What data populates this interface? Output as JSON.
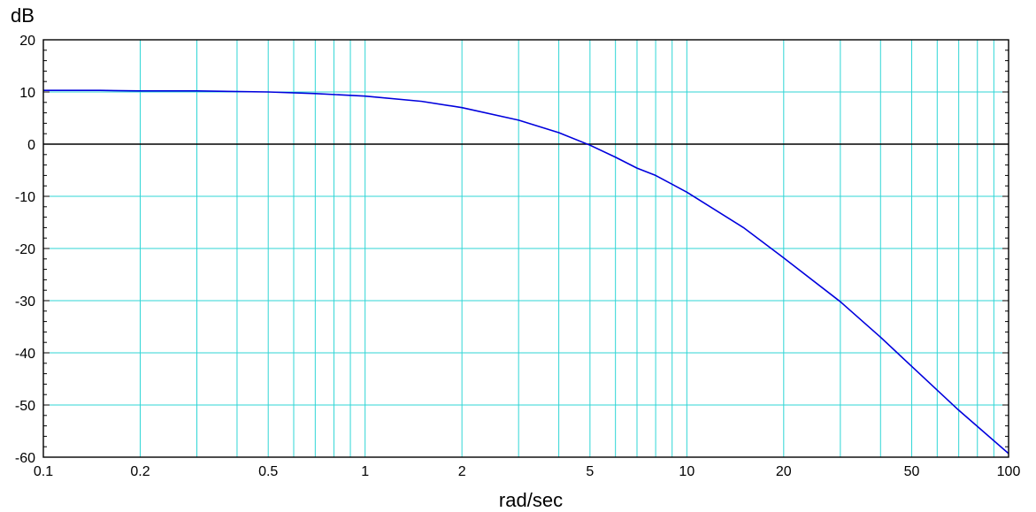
{
  "chart_data": {
    "type": "line",
    "title": "",
    "xlabel": "rad/sec",
    "ylabel": "dB",
    "xscale": "log",
    "xlim": [
      0.1,
      100
    ],
    "ylim": [
      -60,
      20
    ],
    "x_ticks": [
      0.1,
      0.2,
      0.5,
      1,
      2,
      5,
      10,
      20,
      50,
      100
    ],
    "x_tick_labels": [
      "0.1",
      "0.2",
      "0.5",
      "1",
      "2",
      "5",
      "10",
      "20",
      "50",
      "100"
    ],
    "y_ticks": [
      20,
      10,
      0,
      -10,
      -20,
      -30,
      -40,
      -50,
      -60
    ],
    "y_tick_labels": [
      "20",
      "10",
      "0",
      "-10",
      "-20",
      "-30",
      "-40",
      "-50",
      "-60"
    ],
    "grid": true,
    "zero_line": true,
    "series": [
      {
        "x": [
          0.1,
          0.15,
          0.2,
          0.3,
          0.5,
          0.7,
          1,
          1.5,
          2,
          3,
          4,
          5,
          6,
          7,
          8,
          10,
          15,
          20,
          30,
          40,
          50,
          70,
          100
        ],
        "values": [
          10.3,
          10.3,
          10.2,
          10.2,
          10.0,
          9.7,
          9.2,
          8.2,
          7.0,
          4.6,
          2.2,
          -0.2,
          -2.5,
          -4.6,
          -6.0,
          -9.2,
          -16.0,
          -21.8,
          -30.2,
          -37.0,
          -42.6,
          -51.0,
          -59.3
        ]
      }
    ],
    "colors": {
      "curve": "#0000dd",
      "grid": "#2fd6d6",
      "axes": "#000000",
      "background": "#ffffff"
    }
  }
}
